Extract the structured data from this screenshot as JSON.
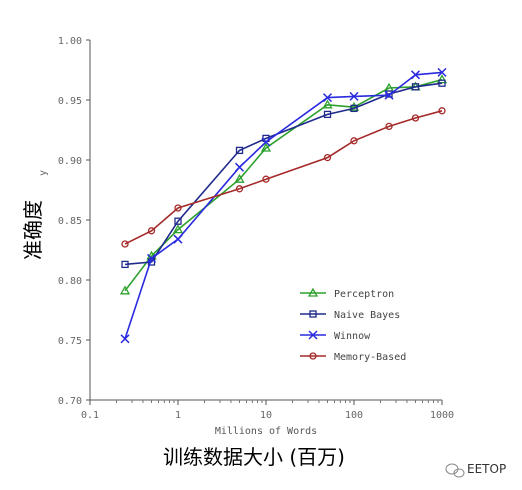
{
  "chart_data": {
    "type": "line",
    "x_scale": "log",
    "xlim": [
      0.1,
      1000
    ],
    "ylim": [
      0.7,
      1.0
    ],
    "x_ticks": [
      "0.1",
      "1",
      "10",
      "100",
      "1000"
    ],
    "y_ticks": [
      "0.70",
      "0.75",
      "0.80",
      "0.85",
      "0.90",
      "0.95",
      "1.00"
    ],
    "xlabel": "Millions of Words",
    "xlabel_cn": "训练数据大小 (百万)",
    "ylabel_partial": "y",
    "ylabel_cn": "准确度",
    "legend_position": "lower-right",
    "series": [
      {
        "name": "Perceptron",
        "color": "#2ca02c",
        "marker": "triangle",
        "points": [
          [
            0.25,
            0.791
          ],
          [
            0.5,
            0.82
          ],
          [
            1,
            0.842
          ],
          [
            5,
            0.884
          ],
          [
            10,
            0.91
          ],
          [
            50,
            0.946
          ],
          [
            100,
            0.944
          ],
          [
            250,
            0.96
          ],
          [
            500,
            0.961
          ],
          [
            1000,
            0.967
          ]
        ]
      },
      {
        "name": "Naive Bayes",
        "color": "#1f2a8c",
        "marker": "square",
        "points": [
          [
            0.25,
            0.813
          ],
          [
            0.5,
            0.815
          ],
          [
            1,
            0.849
          ],
          [
            5,
            0.908
          ],
          [
            10,
            0.918
          ],
          [
            50,
            0.938
          ],
          [
            100,
            0.943
          ],
          [
            250,
            0.955
          ],
          [
            500,
            0.961
          ],
          [
            1000,
            0.964
          ]
        ]
      },
      {
        "name": "Winnow",
        "color": "#2a2ae0",
        "marker": "x",
        "points": [
          [
            0.25,
            0.751
          ],
          [
            0.5,
            0.818
          ],
          [
            1,
            0.834
          ],
          [
            5,
            0.894
          ],
          [
            10,
            0.915
          ],
          [
            50,
            0.952
          ],
          [
            100,
            0.953
          ],
          [
            250,
            0.954
          ],
          [
            500,
            0.971
          ],
          [
            1000,
            0.973
          ]
        ]
      },
      {
        "name": "Memory-Based",
        "color": "#a52a2a",
        "marker": "circle",
        "points": [
          [
            0.25,
            0.83
          ],
          [
            0.5,
            0.841
          ],
          [
            1,
            0.86
          ],
          [
            5,
            0.876
          ],
          [
            10,
            0.884
          ],
          [
            50,
            0.902
          ],
          [
            100,
            0.916
          ],
          [
            250,
            0.928
          ],
          [
            500,
            0.935
          ],
          [
            1000,
            0.941
          ]
        ]
      }
    ]
  },
  "watermark": {
    "text": "EETOP"
  }
}
